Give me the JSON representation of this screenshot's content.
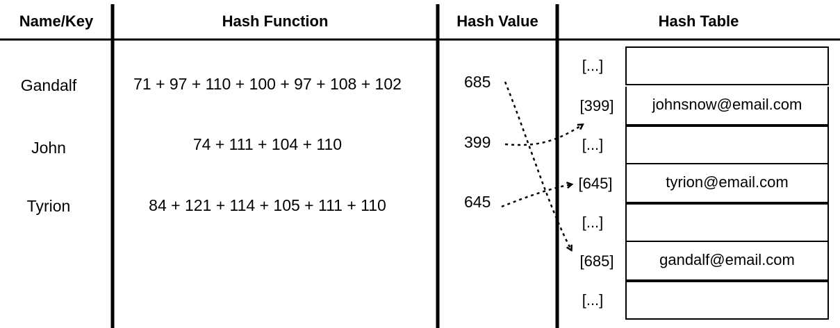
{
  "headers": {
    "name_key": "Name/Key",
    "hash_function": "Hash Function",
    "hash_value": "Hash Value",
    "hash_table": "Hash Table"
  },
  "rows": [
    {
      "name": "Gandalf",
      "function": "71 + 97 + 110 + 100 + 97 + 108 + 102",
      "value": "685"
    },
    {
      "name": "John",
      "function": "74 + 111 + 104 + 110",
      "value": "399"
    },
    {
      "name": "Tyrion",
      "function": "84 + 121 + 114 + 105 + 111 + 110",
      "value": "645"
    }
  ],
  "table": [
    {
      "index": "[...]",
      "content": ""
    },
    {
      "index": "[399]",
      "content": "johnsnow@email.com"
    },
    {
      "index": "[...]",
      "content": ""
    },
    {
      "index": "[645]",
      "content": "tyrion@email.com"
    },
    {
      "index": "[...]",
      "content": ""
    },
    {
      "index": "[685]",
      "content": "gandalf@email.com"
    },
    {
      "index": "[...]",
      "content": ""
    }
  ],
  "arrows": [
    {
      "from": "685",
      "to": "[685]"
    },
    {
      "from": "399",
      "to": "[399]"
    },
    {
      "from": "645",
      "to": "[645]"
    }
  ]
}
